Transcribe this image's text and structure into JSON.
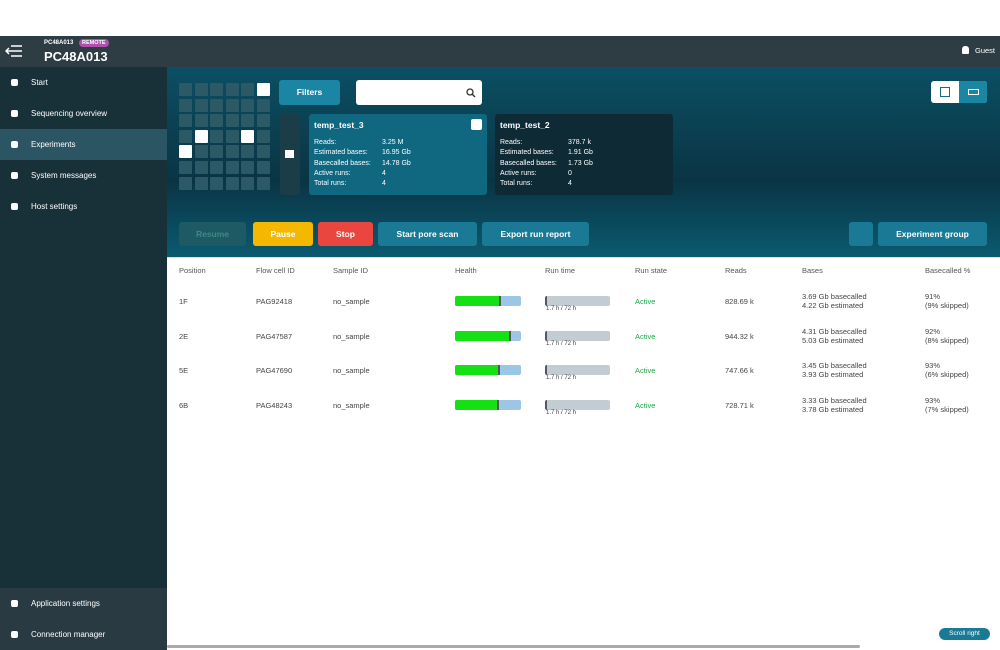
{
  "header": {
    "device_small": "PC48A013",
    "badge": "REMOTE",
    "device": "PC48A013",
    "user": "Guest"
  },
  "sidebar": {
    "items": [
      "Start",
      "Sequencing overview",
      "Experiments",
      "System messages",
      "Host settings"
    ],
    "bottom": [
      "Application settings",
      "Connection manager"
    ]
  },
  "filters": "Filters",
  "experiments": [
    {
      "name": "temp_test_3",
      "fields": [
        [
          "Reads:",
          "3.25 M"
        ],
        [
          "Estimated bases:",
          "16.95 Gb"
        ],
        [
          "Basecalled bases:",
          "14.78 Gb"
        ],
        [
          "Active runs:",
          "4"
        ],
        [
          "Total runs:",
          "4"
        ]
      ]
    },
    {
      "name": "temp_test_2",
      "fields": [
        [
          "Reads:",
          "378.7 k"
        ],
        [
          "Estimated bases:",
          "1.91 Gb"
        ],
        [
          "Basecalled bases:",
          "1.73 Gb"
        ],
        [
          "Active runs:",
          "0"
        ],
        [
          "Total runs:",
          "4"
        ]
      ]
    }
  ],
  "actions": {
    "resume": "Resume",
    "pause": "Pause",
    "stop": "Stop",
    "pore_scan": "Start pore scan",
    "export": "Export run report",
    "group": "Experiment group"
  },
  "table": {
    "columns": [
      "Position",
      "Flow cell ID",
      "Sample ID",
      "Health",
      "Run time",
      "Run state",
      "Reads",
      "Bases",
      "Basecalled %"
    ],
    "rows": [
      {
        "position": "1F",
        "flow_cell": "PAG92418",
        "sample": "no_sample",
        "health": 0.7,
        "run_time": "1.7 h / 72 h",
        "state": "Active",
        "reads": "828.69 k",
        "bases": [
          "3.69 Gb basecalled",
          "4.22 Gb estimated"
        ],
        "basecalled": [
          "91%",
          "(9% skipped)"
        ]
      },
      {
        "position": "2E",
        "flow_cell": "PAG47587",
        "sample": "no_sample",
        "health": 0.85,
        "run_time": "1.7 h / 72 h",
        "state": "Active",
        "reads": "944.32 k",
        "bases": [
          "4.31 Gb basecalled",
          "5.03 Gb estimated"
        ],
        "basecalled": [
          "92%",
          "(8% skipped)"
        ]
      },
      {
        "position": "5E",
        "flow_cell": "PAG47690",
        "sample": "no_sample",
        "health": 0.68,
        "run_time": "1.7 h / 72 h",
        "state": "Active",
        "reads": "747.66 k",
        "bases": [
          "3.45 Gb basecalled",
          "3.93 Gb estimated"
        ],
        "basecalled": [
          "93%",
          "(6% skipped)"
        ]
      },
      {
        "position": "6B",
        "flow_cell": "PAG48243",
        "sample": "no_sample",
        "health": 0.66,
        "run_time": "1.7 h / 72 h",
        "state": "Active",
        "reads": "728.71 k",
        "bases": [
          "3.33 Gb basecalled",
          "3.78 Gb estimated"
        ],
        "basecalled": [
          "93%",
          "(7% skipped)"
        ]
      }
    ]
  },
  "scroll": "Scroll right"
}
